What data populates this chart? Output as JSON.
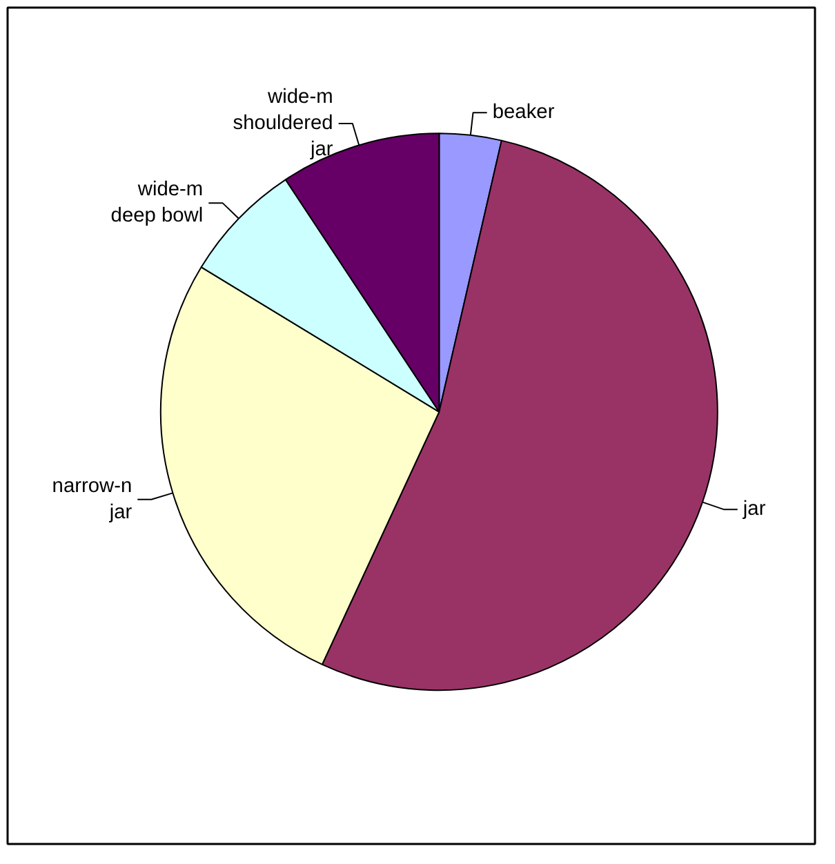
{
  "chart_data": {
    "type": "pie",
    "categories": [
      "beaker",
      "jar",
      "narrow-n\njar",
      "wide-m\ndeep bowl",
      "wide-m\nshouldered\njar"
    ],
    "values": [
      3.6,
      53.3,
      26.8,
      7.0,
      9.3
    ],
    "colors": [
      "#9999ff",
      "#993366",
      "#ffffcc",
      "#ccffff",
      "#660066"
    ]
  }
}
